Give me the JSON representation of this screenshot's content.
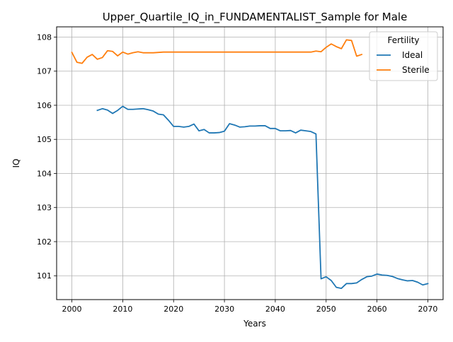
{
  "chart_data": {
    "type": "line",
    "title": "Upper_Quartile_IQ_in_FUNDAMENTALIST_Sample for Male",
    "xlabel": "Years",
    "ylabel": "IQ",
    "xlim": [
      1997,
      2073
    ],
    "ylim": [
      100.3,
      108.3
    ],
    "x_ticks": [
      2000,
      2010,
      2020,
      2030,
      2040,
      2050,
      2060,
      2070
    ],
    "y_ticks": [
      101,
      102,
      103,
      104,
      105,
      106,
      107,
      108
    ],
    "grid": true,
    "legend": {
      "title": "Fertility",
      "placement": "top-right"
    },
    "series": [
      {
        "name": "Ideal",
        "color": "#1f77b4",
        "points": [
          [
            2005,
            105.85
          ],
          [
            2006,
            105.9
          ],
          [
            2007,
            105.86
          ],
          [
            2008,
            105.76
          ],
          [
            2009,
            105.85
          ],
          [
            2010,
            105.97
          ],
          [
            2011,
            105.88
          ],
          [
            2012,
            105.88
          ],
          [
            2013,
            105.89
          ],
          [
            2014,
            105.9
          ],
          [
            2015,
            105.87
          ],
          [
            2016,
            105.83
          ],
          [
            2017,
            105.74
          ],
          [
            2018,
            105.72
          ],
          [
            2019,
            105.56
          ],
          [
            2020,
            105.38
          ],
          [
            2021,
            105.38
          ],
          [
            2022,
            105.36
          ],
          [
            2023,
            105.38
          ],
          [
            2024,
            105.45
          ],
          [
            2025,
            105.25
          ],
          [
            2026,
            105.29
          ],
          [
            2027,
            105.19
          ],
          [
            2028,
            105.19
          ],
          [
            2029,
            105.2
          ],
          [
            2030,
            105.24
          ],
          [
            2031,
            105.46
          ],
          [
            2032,
            105.42
          ],
          [
            2033,
            105.36
          ],
          [
            2034,
            105.37
          ],
          [
            2035,
            105.39
          ],
          [
            2036,
            105.39
          ],
          [
            2037,
            105.4
          ],
          [
            2038,
            105.4
          ],
          [
            2039,
            105.32
          ],
          [
            2040,
            105.32
          ],
          [
            2041,
            105.25
          ],
          [
            2042,
            105.25
          ],
          [
            2043,
            105.26
          ],
          [
            2044,
            105.19
          ],
          [
            2045,
            105.27
          ],
          [
            2046,
            105.25
          ],
          [
            2047,
            105.23
          ],
          [
            2048,
            105.16
          ],
          [
            2049,
            100.91
          ],
          [
            2050,
            100.97
          ],
          [
            2051,
            100.86
          ],
          [
            2052,
            100.66
          ],
          [
            2053,
            100.63
          ],
          [
            2054,
            100.77
          ],
          [
            2055,
            100.77
          ],
          [
            2056,
            100.79
          ],
          [
            2057,
            100.89
          ],
          [
            2058,
            100.97
          ],
          [
            2059,
            100.99
          ],
          [
            2060,
            101.05
          ],
          [
            2061,
            101.02
          ],
          [
            2062,
            101.01
          ],
          [
            2063,
            100.98
          ],
          [
            2064,
            100.92
          ],
          [
            2065,
            100.88
          ],
          [
            2066,
            100.85
          ],
          [
            2067,
            100.86
          ],
          [
            2068,
            100.81
          ],
          [
            2069,
            100.73
          ],
          [
            2070,
            100.77
          ]
        ]
      },
      {
        "name": "Sterile",
        "color": "#ff7f0e",
        "points": [
          [
            2000,
            107.55
          ],
          [
            2001,
            107.26
          ],
          [
            2002,
            107.23
          ],
          [
            2003,
            107.41
          ],
          [
            2004,
            107.49
          ],
          [
            2005,
            107.35
          ],
          [
            2006,
            107.4
          ],
          [
            2007,
            107.6
          ],
          [
            2008,
            107.58
          ],
          [
            2009,
            107.45
          ],
          [
            2010,
            107.56
          ],
          [
            2011,
            107.5
          ],
          [
            2012,
            107.54
          ],
          [
            2013,
            107.57
          ],
          [
            2014,
            107.54
          ],
          [
            2015,
            107.54
          ],
          [
            2016,
            107.54
          ],
          [
            2017,
            107.55
          ],
          [
            2018,
            107.56
          ],
          [
            2019,
            107.56
          ],
          [
            2020,
            107.56
          ],
          [
            2021,
            107.56
          ],
          [
            2022,
            107.56
          ],
          [
            2023,
            107.56
          ],
          [
            2024,
            107.56
          ],
          [
            2025,
            107.56
          ],
          [
            2026,
            107.56
          ],
          [
            2027,
            107.56
          ],
          [
            2028,
            107.56
          ],
          [
            2029,
            107.56
          ],
          [
            2030,
            107.56
          ],
          [
            2031,
            107.56
          ],
          [
            2032,
            107.56
          ],
          [
            2033,
            107.56
          ],
          [
            2034,
            107.56
          ],
          [
            2035,
            107.56
          ],
          [
            2036,
            107.56
          ],
          [
            2037,
            107.56
          ],
          [
            2038,
            107.56
          ],
          [
            2039,
            107.56
          ],
          [
            2040,
            107.56
          ],
          [
            2041,
            107.56
          ],
          [
            2042,
            107.56
          ],
          [
            2043,
            107.56
          ],
          [
            2044,
            107.56
          ],
          [
            2045,
            107.56
          ],
          [
            2046,
            107.56
          ],
          [
            2047,
            107.56
          ],
          [
            2048,
            107.59
          ],
          [
            2049,
            107.57
          ],
          [
            2050,
            107.7
          ],
          [
            2051,
            107.8
          ],
          [
            2052,
            107.72
          ],
          [
            2053,
            107.66
          ],
          [
            2054,
            107.92
          ],
          [
            2055,
            107.9
          ],
          [
            2056,
            107.44
          ],
          [
            2057,
            107.49
          ]
        ]
      }
    ]
  }
}
